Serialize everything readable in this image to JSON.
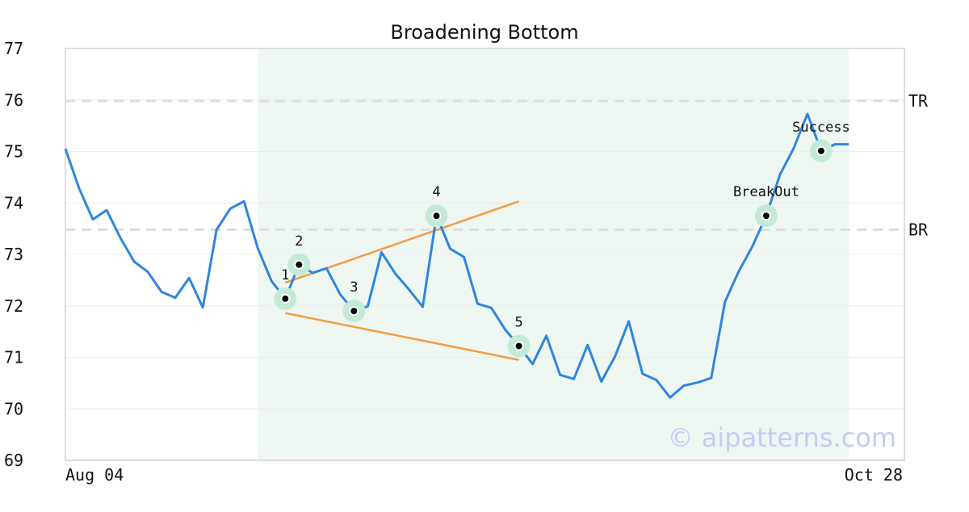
{
  "chart_data": {
    "type": "line",
    "title": "Broadening Bottom",
    "watermark": "© aipatterns.com",
    "x_tick_labels": [
      "Aug 04",
      "Oct 28"
    ],
    "ylim": [
      69,
      77
    ],
    "yticks": [
      69,
      70,
      71,
      72,
      73,
      74,
      75,
      76,
      77
    ],
    "grid": true,
    "pattern_window": {
      "start_index": 14,
      "end_index": 57
    },
    "series": [
      {
        "color": "#2e86de",
        "values": [
          75.05,
          74.28,
          73.68,
          73.86,
          73.32,
          72.86,
          72.66,
          72.27,
          72.16,
          72.54,
          71.97,
          73.48,
          73.89,
          74.03,
          73.12,
          72.48,
          72.14,
          72.8,
          72.64,
          72.73,
          72.22,
          71.9,
          71.99,
          73.04,
          72.63,
          72.32,
          71.98,
          73.75,
          73.11,
          72.95,
          72.04,
          71.96,
          71.54,
          71.22,
          70.87,
          71.42,
          70.66,
          70.58,
          71.24,
          70.53,
          71.02,
          71.7,
          70.68,
          70.56,
          70.22,
          70.45,
          70.51,
          70.6,
          72.08,
          72.67,
          73.16,
          73.75,
          74.55,
          75.06,
          75.73,
          75.01,
          75.14,
          75.14
        ]
      }
    ],
    "reference_lines": [
      {
        "label": "TR",
        "y": 75.98,
        "color": "#dddddd"
      },
      {
        "label": "BR",
        "y": 73.48,
        "color": "#dddddd"
      }
    ],
    "trend_lines": [
      {
        "x1": 16,
        "y1": 72.45,
        "x2": 33,
        "y2": 74.03,
        "color": "#f59a42"
      },
      {
        "x1": 16,
        "y1": 71.86,
        "x2": 33,
        "y2": 70.95,
        "color": "#f59a42"
      }
    ],
    "points": [
      {
        "label": "1",
        "index": 16,
        "y": 72.14
      },
      {
        "label": "2",
        "index": 17,
        "y": 72.8
      },
      {
        "label": "3",
        "index": 21,
        "y": 71.9
      },
      {
        "label": "4",
        "index": 27,
        "y": 73.75
      },
      {
        "label": "5",
        "index": 33,
        "y": 71.22
      },
      {
        "label": "BreakOut",
        "index": 51,
        "y": 73.75
      },
      {
        "label": "Success",
        "index": 55,
        "y": 75.01
      }
    ],
    "colors": {
      "line": "#2e86de",
      "trend": "#f59a42",
      "shade": "#eff7f3",
      "marker_halo": "#c3ead7",
      "marker_dot": "#000000",
      "frame": "#dddddd",
      "grid": "#ececec",
      "watermark": "#c9c9f5"
    }
  }
}
